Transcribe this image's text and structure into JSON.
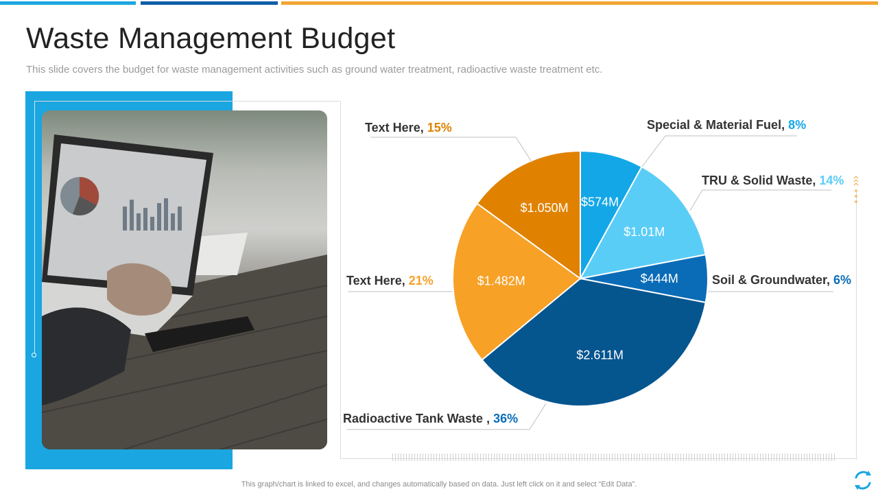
{
  "slide": {
    "title": "Waste Management Budget",
    "subtitle": "This slide covers the budget for waste management activities such as ground water treatment, radioactive waste treatment etc.",
    "footnote": "This graph/chart is linked to excel, and changes automatically based on data. Just left click on it and select “Edit Data”."
  },
  "colors": {
    "accent_blue": "#1AA6E0",
    "dark_blue": "#0E5FA8",
    "orange": "#F2A533"
  },
  "icons": {
    "refresh": "refresh-icon"
  },
  "chart_data": {
    "type": "pie",
    "slices": [
      {
        "label": "Special & Material Fuel, ",
        "pct": 8,
        "pct_label": "8%",
        "value": 0.574,
        "value_label": "$574M",
        "color": "#14A7E7",
        "pct_color": "#14A7E7"
      },
      {
        "label": "TRU & Solid Waste, ",
        "pct": 14,
        "pct_label": "14%",
        "value": 1.01,
        "value_label": "$1.01M",
        "color": "#5ACDF7",
        "pct_color": "#5ACDF7"
      },
      {
        "label": "Soil & Groundwater, ",
        "pct": 6,
        "pct_label": "6%",
        "value": 0.444,
        "value_label": "$444M",
        "color": "#0A6CB7",
        "pct_color": "#0A6CB7"
      },
      {
        "label": "Radioactive Tank Waste , ",
        "pct": 36,
        "pct_label": "36%",
        "value": 2.611,
        "value_label": "$2.611M",
        "color": "#05558F",
        "pct_color": "#0A6CB7"
      },
      {
        "label": "Text Here, ",
        "pct": 21,
        "pct_label": "21%",
        "value": 1.482,
        "value_label": "$1.482M",
        "color": "#F7A127",
        "pct_color": "#F7A127"
      },
      {
        "label": "Text Here, ",
        "pct": 15,
        "pct_label": "15%",
        "value": 1.05,
        "value_label": "$1.050M",
        "color": "#E08200",
        "pct_color": "#E08200"
      }
    ]
  }
}
